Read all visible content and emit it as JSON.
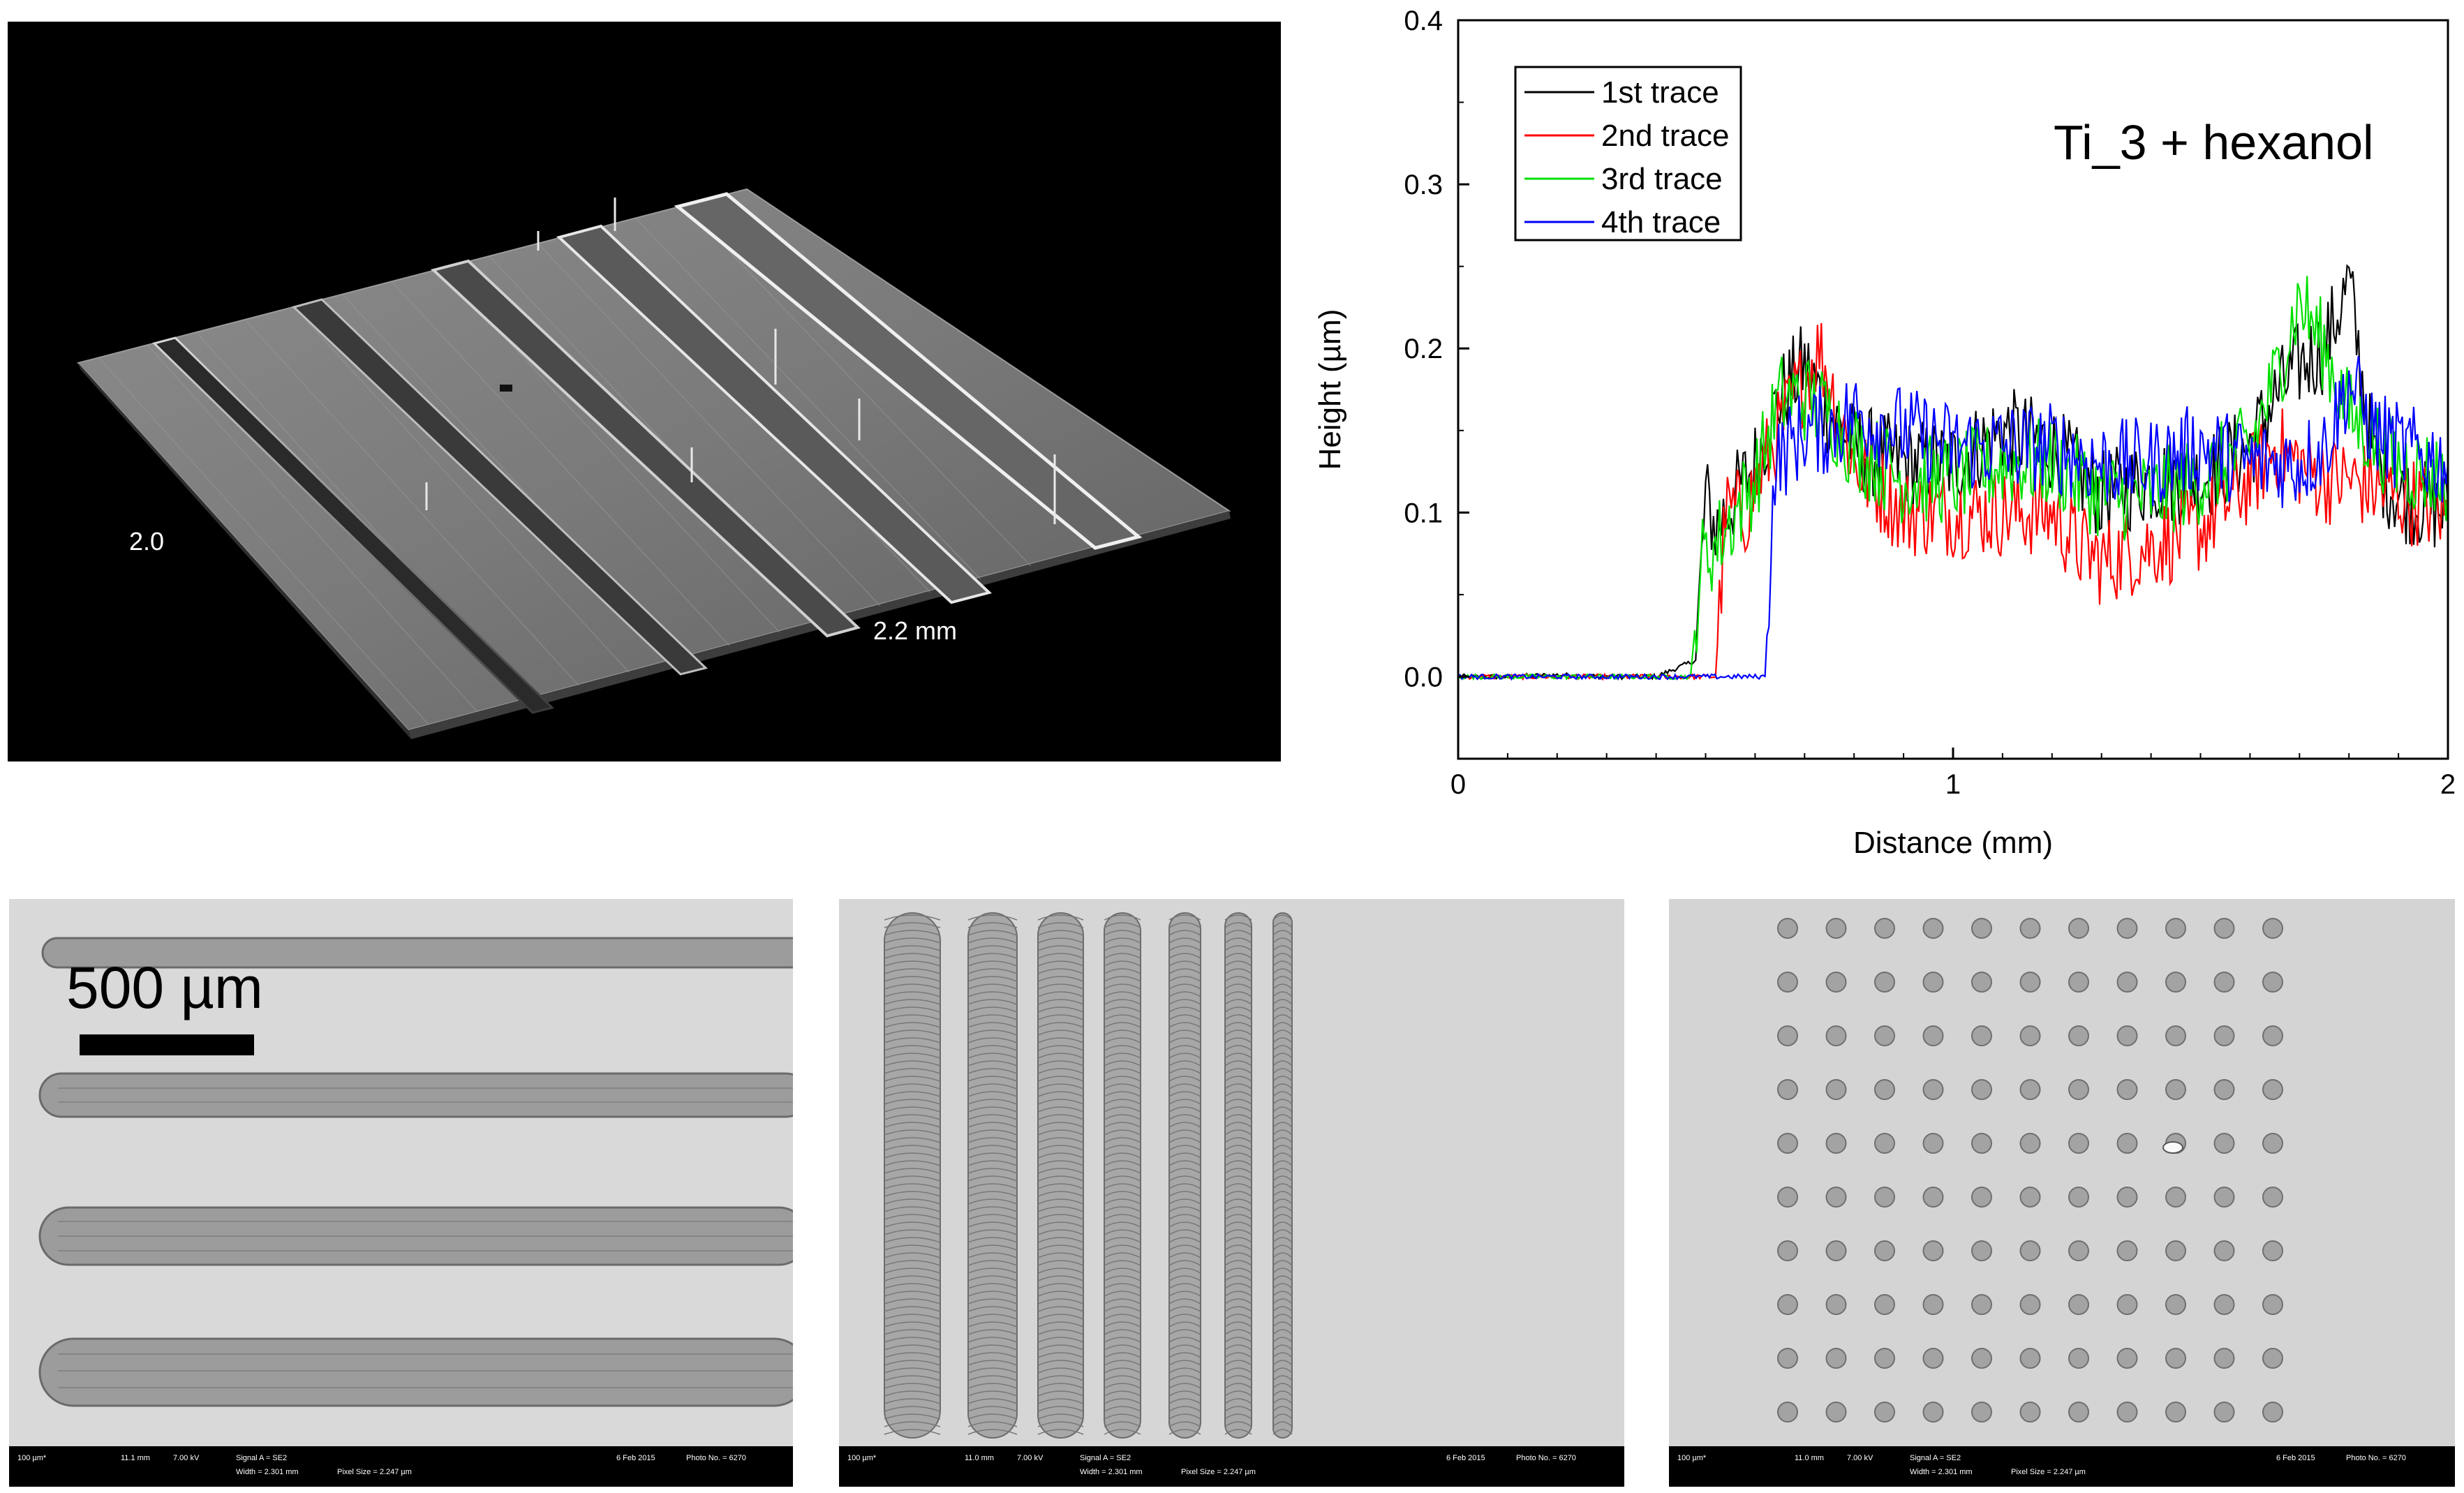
{
  "profile_3d": {
    "label_left": "2.0",
    "label_right": "2.2 mm"
  },
  "scale_bar": {
    "label": "500 µm"
  },
  "sem_info": {
    "p1": [
      "100 µm*",
      "11.1 mm",
      "7.00 kV",
      "Signal A = SE2",
      "Width = 2.301 mm",
      "Pixel Size = 2.247 µm",
      "6 Feb 2015",
      "Photo No. = 6270"
    ],
    "p2": [
      "100 µm*",
      "11.0 mm",
      "7.00 kV",
      "Signal A = SE2",
      "Width = 2.301 mm",
      "Pixel Size = 2.247 µm",
      "6 Feb 2015",
      "Photo No. = 6270"
    ],
    "p3": [
      "100 µm*",
      "11.0 mm",
      "7.00 kV",
      "Signal A = SE2",
      "Width = 2.301 mm",
      "Pixel Size = 2.247 µm",
      "6 Feb 2015",
      "Photo No. = 6270"
    ]
  },
  "chart_data": {
    "type": "line",
    "title": "Ti_3 + hexanol",
    "xlabel": "Distance (mm)",
    "ylabel": "Height (µm)",
    "xlim": [
      0,
      2
    ],
    "ylim": [
      -0.05,
      0.4
    ],
    "xticks": [
      "0",
      "1",
      "2"
    ],
    "yticks": [
      "0.0",
      "0.1",
      "0.2",
      "0.3",
      "0.4"
    ],
    "legend_position": "top-left",
    "grid": false,
    "series": [
      {
        "name": "1st trace",
        "color": "#000000",
        "x": [
          0,
          0.1,
          0.2,
          0.3,
          0.4,
          0.48,
          0.5,
          0.52,
          0.56,
          0.6,
          0.65,
          0.7,
          0.75,
          0.8,
          0.9,
          1.0,
          1.1,
          1.2,
          1.3,
          1.4,
          1.5,
          1.6,
          1.65,
          1.7,
          1.75,
          1.8,
          1.85,
          1.9,
          2.0
        ],
        "y": [
          0.0,
          0.0,
          0.001,
          0.0,
          0.0,
          0.01,
          0.11,
          0.09,
          0.11,
          0.13,
          0.17,
          0.19,
          0.16,
          0.14,
          0.13,
          0.13,
          0.15,
          0.14,
          0.11,
          0.12,
          0.12,
          0.14,
          0.17,
          0.19,
          0.2,
          0.24,
          0.13,
          0.11,
          0.1
        ]
      },
      {
        "name": "2nd trace",
        "color": "#ff0000",
        "x": [
          0,
          0.1,
          0.2,
          0.3,
          0.4,
          0.5,
          0.52,
          0.54,
          0.58,
          0.62,
          0.68,
          0.73,
          0.8,
          0.9,
          1.0,
          1.1,
          1.2,
          1.25,
          1.3,
          1.4,
          1.5,
          1.6,
          1.65,
          1.7,
          1.75,
          1.8,
          1.9,
          2.0
        ],
        "y": [
          0.0,
          0.0,
          0.0,
          0.0,
          0.0,
          0.0,
          0.0,
          0.1,
          0.1,
          0.13,
          0.17,
          0.2,
          0.13,
          0.1,
          0.1,
          0.1,
          0.1,
          0.08,
          0.07,
          0.08,
          0.09,
          0.12,
          0.14,
          0.13,
          0.12,
          0.12,
          0.11,
          0.1
        ]
      },
      {
        "name": "3rd trace",
        "color": "#00e000",
        "x": [
          0,
          0.1,
          0.2,
          0.3,
          0.4,
          0.47,
          0.49,
          0.52,
          0.56,
          0.6,
          0.65,
          0.7,
          0.75,
          0.8,
          0.9,
          1.0,
          1.1,
          1.2,
          1.3,
          1.4,
          1.5,
          1.6,
          1.65,
          1.7,
          1.75,
          1.8,
          1.9,
          2.0
        ],
        "y": [
          0.0,
          0.0,
          0.0,
          0.0,
          0.0,
          0.0,
          0.07,
          0.08,
          0.1,
          0.12,
          0.17,
          0.17,
          0.16,
          0.14,
          0.12,
          0.12,
          0.13,
          0.13,
          0.11,
          0.11,
          0.12,
          0.14,
          0.18,
          0.23,
          0.2,
          0.16,
          0.13,
          0.12
        ]
      },
      {
        "name": "4th trace",
        "color": "#0000ff",
        "x": [
          0,
          0.1,
          0.2,
          0.3,
          0.4,
          0.5,
          0.55,
          0.6,
          0.62,
          0.64,
          0.7,
          0.75,
          0.8,
          0.9,
          1.0,
          1.1,
          1.2,
          1.3,
          1.4,
          1.5,
          1.6,
          1.7,
          1.75,
          1.8,
          1.85,
          1.9,
          2.0
        ],
        "y": [
          0.0,
          0.0,
          0.0,
          0.0,
          0.0,
          0.0,
          0.0,
          0.0,
          0.0,
          0.13,
          0.15,
          0.15,
          0.16,
          0.15,
          0.14,
          0.14,
          0.14,
          0.13,
          0.13,
          0.14,
          0.13,
          0.13,
          0.14,
          0.18,
          0.15,
          0.14,
          0.13
        ]
      }
    ]
  }
}
